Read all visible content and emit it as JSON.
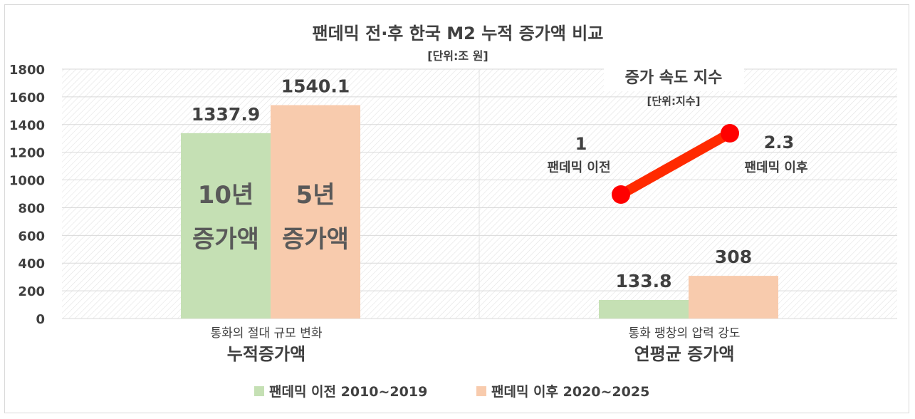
{
  "colors": {
    "before": "#c5e0b4",
    "after": "#f8cbad",
    "speed_line": "#ff2a00",
    "speed_point": "#ff0000",
    "text": "#404040",
    "grid": "#d9d9d9"
  },
  "chart_data": {
    "type": "bar",
    "title": "팬데믹 전·후 한국 M2 누적 증가액 비교",
    "subtitle": "[단위:조 원]",
    "ylim": [
      0,
      1800
    ],
    "yticks": [
      0,
      200,
      400,
      600,
      800,
      1000,
      1200,
      1400,
      1600,
      1800
    ],
    "grid": true,
    "legend_position": "bottom",
    "categories": [
      {
        "sublabel": "통화의 절대 규모 변화",
        "label": "누적증가액"
      },
      {
        "sublabel": "통화 팽창의 압력 강도",
        "label": "연평균 증가액"
      }
    ],
    "series": [
      {
        "name": "팬데믹 이전 2010~2019",
        "values": [
          1337.9,
          133.8
        ],
        "data_labels": [
          "1337.9",
          "133.8"
        ]
      },
      {
        "name": "팬데믹 이후 2020~2025",
        "values": [
          1540.1,
          308
        ],
        "data_labels": [
          "1540.1",
          "308"
        ]
      }
    ],
    "bar_annotations": [
      {
        "series": 0,
        "category": 0,
        "lines": [
          "10년",
          "증가액"
        ]
      },
      {
        "series": 1,
        "category": 0,
        "lines": [
          "5년",
          "증가액"
        ]
      }
    ],
    "inset": {
      "type": "line",
      "title": "증가 속도 지수",
      "subtitle": "[단위:지수]",
      "points": [
        {
          "value": 1,
          "value_label": "1",
          "label": "팬데믹 이전"
        },
        {
          "value": 2.3,
          "value_label": "2.3",
          "label": "팬데믹 이후"
        }
      ]
    }
  }
}
